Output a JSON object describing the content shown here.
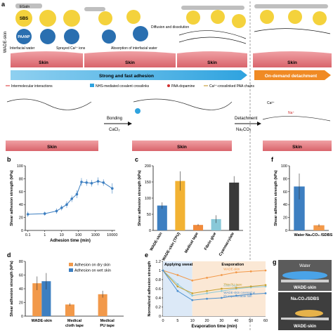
{
  "panel_a": {
    "letter": "a",
    "side_label": "WADE-skin",
    "egain": "EGaIn",
    "sbs": "SBS",
    "paanp": "PAANP",
    "interfacial_water": "Interfacial water",
    "sprayed_ca": "Sprayed Ca²⁺ ions",
    "diffusion": "Diffusion and dissolution",
    "absorption": "Absorption of interfacial water",
    "skin": "Skin",
    "arrow_strong": "Strong and fast adhesion",
    "arrow_detach": "On-demand detachment",
    "legend": [
      "Intermolecular interactions",
      "NHS-mediated covalent crosslinks",
      "PAA-dopamine",
      "Ca²⁺-crosslinked PAA chains"
    ],
    "bonding": "Bonding",
    "cacl2": "CaCl₂",
    "detachment": "Detachment",
    "na2co3": "Na₂CO₃",
    "ca_label": "Ca²⁺",
    "na_label": "Na⁺"
  },
  "colors": {
    "sbs_yellow": "#f4d23c",
    "paanp_blue": "#2a6fb0",
    "skin_pink": "#e8848a",
    "arrow_blue": "#2fa3df",
    "arrow_orange": "#f08a24",
    "series_dry": "#f2994a",
    "series_wet": "#3d7fc1"
  },
  "chart_data": [
    {
      "panel": "b",
      "type": "line",
      "xlabel": "Adhesion time (min)",
      "ylabel": "Shear adhesion strength (kPa)",
      "xscale": "log",
      "xlim": [
        0.07,
        15000
      ],
      "ylim": [
        0,
        100
      ],
      "xticks": [
        "0.1",
        "1",
        "10",
        "100",
        "1000",
        "10000"
      ],
      "yticks": [
        0,
        20,
        40,
        60,
        80,
        100
      ],
      "x": [
        0.1,
        1,
        5,
        10,
        20,
        40,
        80,
        150,
        300,
        600,
        1440,
        3000,
        10000
      ],
      "y": [
        25,
        26,
        30,
        35,
        40,
        49,
        56,
        75,
        74,
        73,
        76,
        74,
        65
      ],
      "err": [
        4,
        3,
        4,
        4,
        5,
        5,
        6,
        6,
        5,
        5,
        6,
        5,
        8
      ]
    },
    {
      "panel": "c",
      "type": "bar",
      "ylabel": "Shear adhesion strength (kPa)",
      "ylim": [
        0,
        200
      ],
      "yticks": [
        0,
        50,
        100,
        150,
        200
      ],
      "categories": [
        "WADE-skin",
        "WADE-skin (TPU)",
        "Medical tape",
        "Fibrin glue",
        "Cyanoacrylate"
      ],
      "values": [
        77,
        153,
        17,
        35,
        148
      ],
      "err": [
        10,
        30,
        3,
        12,
        20
      ],
      "colors": [
        "#3d7fc1",
        "#f2b233",
        "#f08a3c",
        "#88c8d8",
        "#3a3a3a"
      ]
    },
    {
      "panel": "d",
      "type": "bar",
      "ylabel": "Shear adhesion strength (kPa)",
      "ylim": [
        0,
        80
      ],
      "yticks": [
        0,
        20,
        40,
        60,
        80
      ],
      "categories": [
        "WADE-skin",
        "Medical cloth tape",
        "Medical PU tape"
      ],
      "series": [
        {
          "name": "Adhesion on dry skin",
          "values": [
            48,
            17,
            32
          ],
          "err": [
            10,
            2,
            5
          ]
        },
        {
          "name": "Adhesion on wet skin",
          "values": [
            51,
            0,
            0
          ],
          "err": [
            12,
            0,
            0
          ]
        }
      ]
    },
    {
      "panel": "e",
      "type": "line",
      "xlabel": "Evaporation time (min)",
      "ylabel": "Normalized adhesion strength",
      "ylim": [
        0,
        1.2
      ],
      "yticks": [
        0,
        0.2,
        0.4,
        0.6,
        0.8,
        1.0,
        1.2
      ],
      "xticks": [
        "0",
        "5",
        "10",
        "20",
        "30",
        "40",
        "50",
        "60"
      ],
      "zone_applying": "Applying sweat",
      "zone_evaporation": "Evaporation",
      "series": [
        {
          "name": "WADE-skin",
          "color": "#f2994a",
          "x": [
            0,
            5,
            10,
            20,
            30,
            40,
            50,
            60
          ],
          "y": [
            1.0,
            0.9,
            0.78,
            0.84,
            0.9,
            0.96,
            0.98,
            1.0
          ]
        },
        {
          "name": "Cloth tape",
          "color": "#8ec9d6",
          "x": [
            0,
            5,
            10,
            20,
            30,
            40,
            50,
            60
          ],
          "y": [
            1.0,
            0.7,
            0.45,
            0.5,
            0.55,
            0.6,
            0.63,
            0.65
          ]
        },
        {
          "name": "Thin PU tape",
          "color": "#c9a233",
          "x": [
            0,
            5,
            10,
            20,
            30,
            40,
            50,
            60
          ],
          "y": [
            1.0,
            0.65,
            0.5,
            0.55,
            0.6,
            0.62,
            0.65,
            0.68
          ]
        },
        {
          "name": "WADE-skin covered with impermeable film",
          "color": "#4b8fcf",
          "x": [
            0,
            5,
            10,
            20,
            30,
            40,
            50,
            60
          ],
          "y": [
            1.0,
            0.55,
            0.35,
            0.38,
            0.4,
            0.45,
            0.48,
            0.5
          ]
        }
      ]
    },
    {
      "panel": "f",
      "type": "bar",
      "ylabel": "Shear adhesion strength (kPa)",
      "ylim": [
        0,
        100
      ],
      "yticks": [
        0,
        20,
        40,
        60,
        80,
        100
      ],
      "categories": [
        "Water",
        "Na₂CO₃ /SDBS"
      ],
      "values": [
        68,
        8
      ],
      "err": [
        20,
        2
      ],
      "colors": [
        "#3d7fc1",
        "#f2994a"
      ]
    }
  ],
  "panel_g": {
    "letter": "g",
    "water": "Water",
    "skin1": "WADE-skin",
    "solution": "Na₂CO₃/SDBS",
    "skin2": "WADE-skin"
  }
}
